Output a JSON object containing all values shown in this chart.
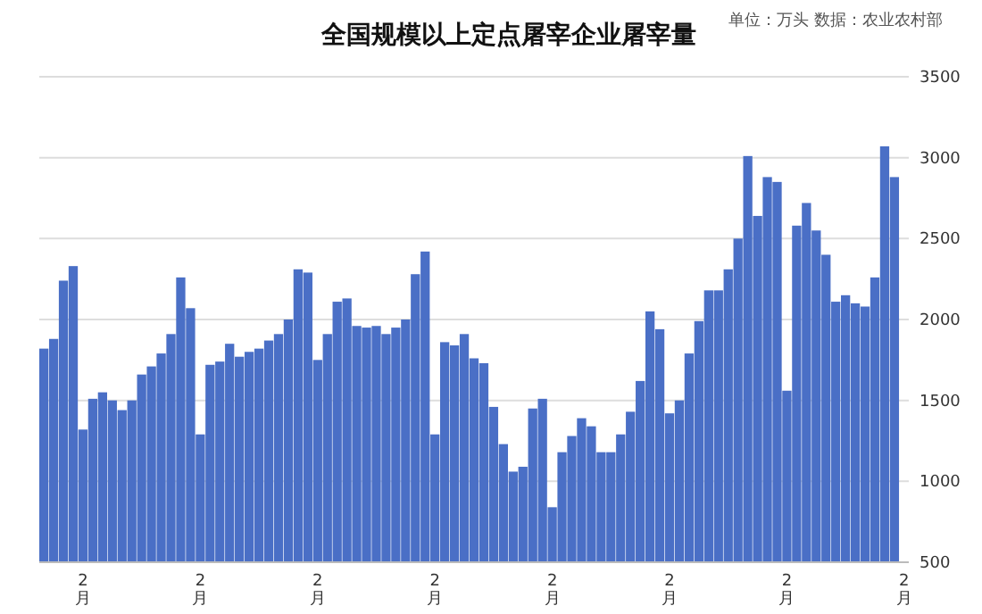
{
  "chart_data": {
    "type": "bar",
    "title": "全国规模以上定点屠宰企业屠宰量",
    "annotations": [
      "单位：万头  数据：农业农村部"
    ],
    "categories": [
      null,
      null,
      null,
      null,
      "2月",
      null,
      null,
      null,
      null,
      null,
      null,
      null,
      null,
      null,
      null,
      null,
      "2月",
      null,
      null,
      null,
      null,
      null,
      null,
      null,
      null,
      null,
      null,
      null,
      "2月",
      null,
      null,
      null,
      null,
      null,
      null,
      null,
      null,
      null,
      null,
      null,
      "2月",
      null,
      null,
      null,
      null,
      null,
      null,
      null,
      null,
      null,
      null,
      null,
      "2月",
      null,
      null,
      null,
      null,
      null,
      null,
      null,
      null,
      null,
      null,
      null,
      "2月",
      null,
      null,
      null,
      null,
      null,
      null,
      null,
      null,
      null,
      null,
      null,
      "2月",
      null,
      null,
      null,
      null,
      null,
      null,
      null,
      null,
      null,
      null,
      null,
      "2月"
    ],
    "values": [
      1820,
      1880,
      2240,
      2330,
      1320,
      1510,
      1550,
      1500,
      1440,
      1500,
      1660,
      1710,
      1790,
      1910,
      2260,
      2070,
      1290,
      1720,
      1740,
      1850,
      1770,
      1800,
      1820,
      1870,
      1910,
      2000,
      2310,
      2290,
      1750,
      1910,
      2110,
      2130,
      1960,
      1950,
      1960,
      1910,
      1950,
      2000,
      2280,
      2420,
      1290,
      1860,
      1840,
      1910,
      1760,
      1730,
      1460,
      1230,
      1060,
      1090,
      1450,
      1510,
      840,
      1180,
      1280,
      1390,
      1340,
      1180,
      1180,
      1290,
      1430,
      1620,
      2050,
      1940,
      1420,
      1500,
      1790,
      1990,
      2180,
      2180,
      2310,
      2500,
      3010,
      2640,
      2880,
      2850,
      1560,
      2580,
      2720,
      2550,
      2400,
      2110,
      2150,
      2100,
      2080,
      2260,
      3070,
      2880,
      null
    ],
    "color": "#4a6fc6",
    "ylim": [
      500,
      3500
    ],
    "yticks": [
      500,
      1000,
      1500,
      2000,
      2500,
      3000,
      3500
    ],
    "grid": "y"
  }
}
